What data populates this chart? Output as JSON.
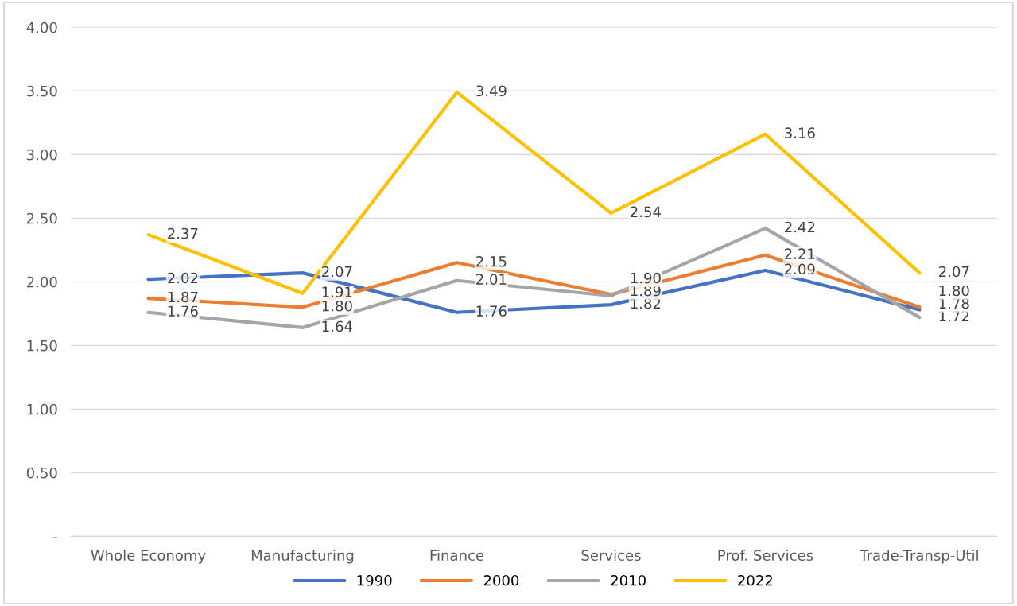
{
  "chart_data": {
    "type": "line",
    "categories": [
      "Whole Economy",
      "Manufacturing",
      "Finance",
      "Services",
      "Prof. Services",
      "Trade-Transp-Util"
    ],
    "series": [
      {
        "name": "1990",
        "color": "#4472c4",
        "values": [
          2.02,
          2.07,
          1.76,
          1.82,
          2.09,
          1.78
        ],
        "value_labels": [
          "2.02",
          "2.07",
          "1.76",
          "1.82",
          "2.09",
          "1.78"
        ]
      },
      {
        "name": "2000",
        "color": "#ed7d31",
        "values": [
          1.87,
          1.8,
          2.15,
          1.9,
          2.21,
          1.8
        ],
        "value_labels": [
          "1.87",
          "1.80",
          "2.15",
          "1.90",
          "2.21",
          "1.80"
        ]
      },
      {
        "name": "2010",
        "color": "#a5a5a5",
        "values": [
          1.76,
          1.64,
          2.01,
          1.89,
          2.42,
          1.72
        ],
        "value_labels": [
          "1.76",
          "1.64",
          "2.01",
          "1.89",
          "2.42",
          "1.72"
        ]
      },
      {
        "name": "2022",
        "color": "#ffc000",
        "values": [
          2.37,
          1.91,
          3.49,
          2.54,
          3.16,
          2.07
        ],
        "value_labels": [
          "2.37",
          "1.91",
          "3.49",
          "2.54",
          "3.16",
          "2.07"
        ]
      }
    ],
    "ylim": [
      0,
      4
    ],
    "yticks": [
      {
        "value": 0,
        "label": "-"
      },
      {
        "value": 0.5,
        "label": "0.50"
      },
      {
        "value": 1,
        "label": "1.00"
      },
      {
        "value": 1.5,
        "label": "1.50"
      },
      {
        "value": 2,
        "label": "2.00"
      },
      {
        "value": 2.5,
        "label": "2.50"
      },
      {
        "value": 3,
        "label": "3.00"
      },
      {
        "value": 3.5,
        "label": "3.50"
      },
      {
        "value": 4,
        "label": "4.00"
      }
    ],
    "grid": "y",
    "legend": "bottom",
    "marker": "none",
    "line_style": "solid"
  }
}
